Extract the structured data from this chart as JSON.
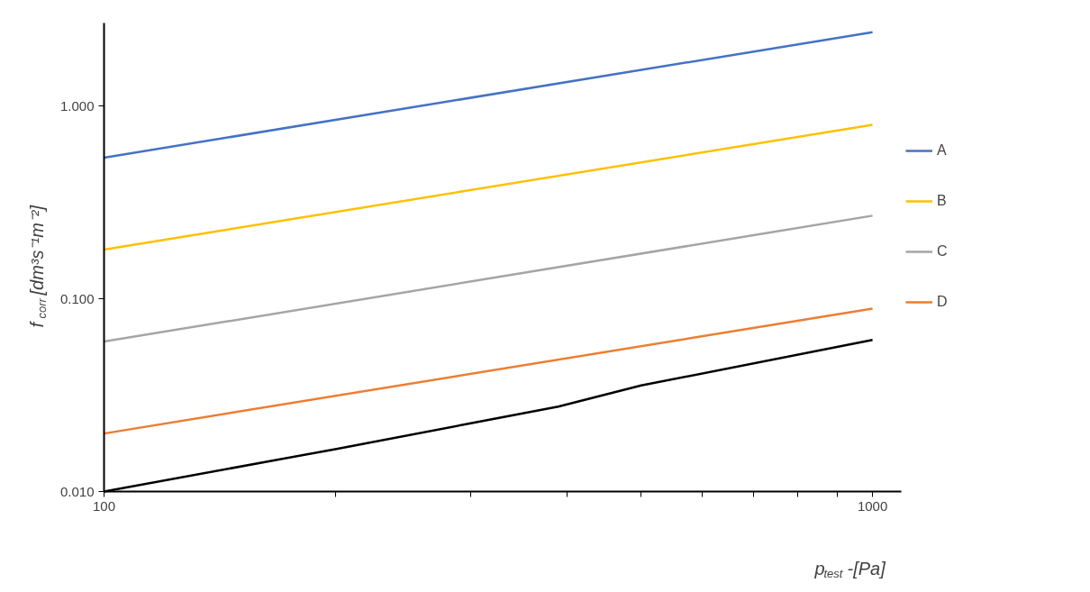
{
  "chart_data": {
    "type": "line",
    "xlabel": "p$_{test}$ -[Pa]",
    "ylabel": "f$_{corr}$ [dm³s⁻¹m⁻²]",
    "log": "xy",
    "grid": false,
    "legend": "right",
    "marker": "none",
    "line_style": "solid",
    "xlim": [
      100,
      1090
    ],
    "ylim": [
      0.01,
      2.7
    ],
    "xticks": [
      100,
      {
        "value": 200,
        "label": null
      },
      {
        "value": 300,
        "label": null
      },
      {
        "value": 400,
        "label": null
      },
      {
        "value": 500,
        "label": null
      },
      {
        "value": 600,
        "label": null
      },
      {
        "value": 700,
        "label": null
      },
      {
        "value": 800,
        "label": null
      },
      {
        "value": 900,
        "label": null
      },
      1000
    ],
    "yticks": [
      {
        "value": 0.01,
        "label": "0.010"
      },
      {
        "value": 0.1,
        "label": "0.100"
      },
      {
        "value": 1,
        "label": "1.000"
      }
    ],
    "series": [
      {
        "name": "A",
        "color": "#4472c4",
        "x": [
          100,
          1000
        ],
        "values": [
          0.54,
          2.42
        ]
      },
      {
        "name": "B",
        "color": "#ffc000",
        "x": [
          100,
          1000
        ],
        "values": [
          0.18,
          0.8
        ]
      },
      {
        "name": "C",
        "color": "#a5a5a5",
        "x": [
          100,
          1000
        ],
        "values": [
          0.06,
          0.27
        ]
      },
      {
        "name": "D",
        "color": "#ed7d31",
        "x": [
          100,
          1000
        ],
        "values": [
          0.02,
          0.089
        ]
      },
      {
        "color": "#000000",
        "x": [
          100,
          200,
          300,
          390,
          500,
          1000
        ],
        "values": [
          0.01,
          0.0166,
          0.0226,
          0.0276,
          0.0355,
          0.0612
        ]
      }
    ]
  }
}
